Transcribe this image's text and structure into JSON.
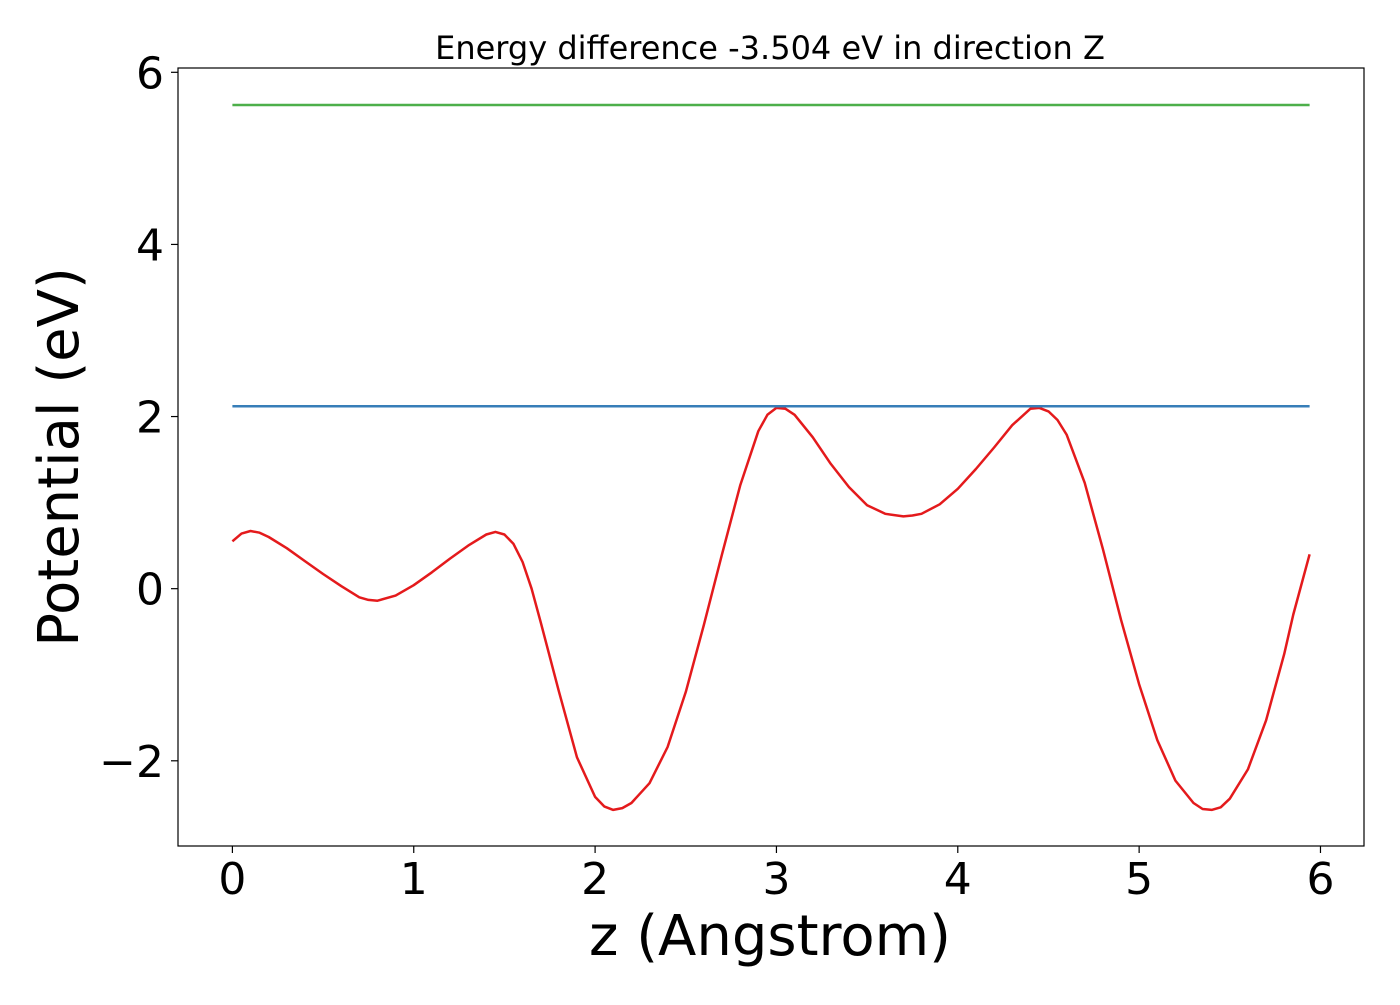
{
  "chart_data": {
    "type": "line",
    "title": "Energy difference -3.504 eV in direction Z",
    "xlabel": "z (Angstrom)",
    "ylabel": "Potential (eV)",
    "xlim": [
      -0.3,
      6.24
    ],
    "ylim": [
      -2.99,
      6.05
    ],
    "x_ticks": [
      {
        "value": 0,
        "label": "0"
      },
      {
        "value": 1,
        "label": "1"
      },
      {
        "value": 2,
        "label": "2"
      },
      {
        "value": 3,
        "label": "3"
      },
      {
        "value": 4,
        "label": "4"
      },
      {
        "value": 5,
        "label": "5"
      },
      {
        "value": 6,
        "label": "6"
      }
    ],
    "y_ticks": [
      {
        "value": -2,
        "label": "−2"
      },
      {
        "value": 0,
        "label": "0"
      },
      {
        "value": 2,
        "label": "2"
      },
      {
        "value": 4,
        "label": "4"
      },
      {
        "value": 6,
        "label": "6"
      }
    ],
    "grid": false,
    "legend": "none",
    "series": [
      {
        "color": "#e41a1c",
        "x": [
          0,
          0.05,
          0.1,
          0.15,
          0.2,
          0.3,
          0.4,
          0.5,
          0.6,
          0.7,
          0.75,
          0.8,
          0.9,
          1.0,
          1.1,
          1.2,
          1.3,
          1.4,
          1.45,
          1.5,
          1.55,
          1.6,
          1.65,
          1.7,
          1.8,
          1.9,
          2.0,
          2.05,
          2.1,
          2.15,
          2.2,
          2.3,
          2.4,
          2.5,
          2.6,
          2.7,
          2.8,
          2.9,
          2.95,
          3.0,
          3.05,
          3.1,
          3.2,
          3.3,
          3.4,
          3.5,
          3.6,
          3.7,
          3.75,
          3.8,
          3.9,
          4.0,
          4.1,
          4.2,
          4.3,
          4.4,
          4.45,
          4.5,
          4.55,
          4.6,
          4.7,
          4.8,
          4.9,
          5.0,
          5.1,
          5.2,
          5.3,
          5.35,
          5.4,
          5.45,
          5.5,
          5.6,
          5.7,
          5.8,
          5.85,
          5.94
        ],
        "y": [
          0.55,
          0.64,
          0.67,
          0.65,
          0.6,
          0.47,
          0.32,
          0.17,
          0.03,
          -0.1,
          -0.13,
          -0.14,
          -0.08,
          0.04,
          0.19,
          0.35,
          0.5,
          0.63,
          0.66,
          0.63,
          0.52,
          0.31,
          0.0,
          -0.39,
          -1.19,
          -1.96,
          -2.42,
          -2.53,
          -2.57,
          -2.55,
          -2.49,
          -2.26,
          -1.84,
          -1.2,
          -0.42,
          0.4,
          1.2,
          1.83,
          2.02,
          2.1,
          2.09,
          2.02,
          1.76,
          1.45,
          1.18,
          0.97,
          0.87,
          0.84,
          0.85,
          0.87,
          0.98,
          1.16,
          1.39,
          1.64,
          1.9,
          2.09,
          2.1,
          2.06,
          1.96,
          1.79,
          1.23,
          0.46,
          -0.36,
          -1.11,
          -1.76,
          -2.23,
          -2.49,
          -2.56,
          -2.57,
          -2.54,
          -2.44,
          -2.1,
          -1.53,
          -0.76,
          -0.3,
          0.4
        ]
      },
      {
        "color": "#377eb8",
        "x": [
          0,
          5.94
        ],
        "y": [
          2.12,
          2.12
        ]
      },
      {
        "color": "#4daf4a",
        "x": [
          0,
          5.94
        ],
        "y": [
          5.62,
          5.62
        ]
      }
    ]
  }
}
